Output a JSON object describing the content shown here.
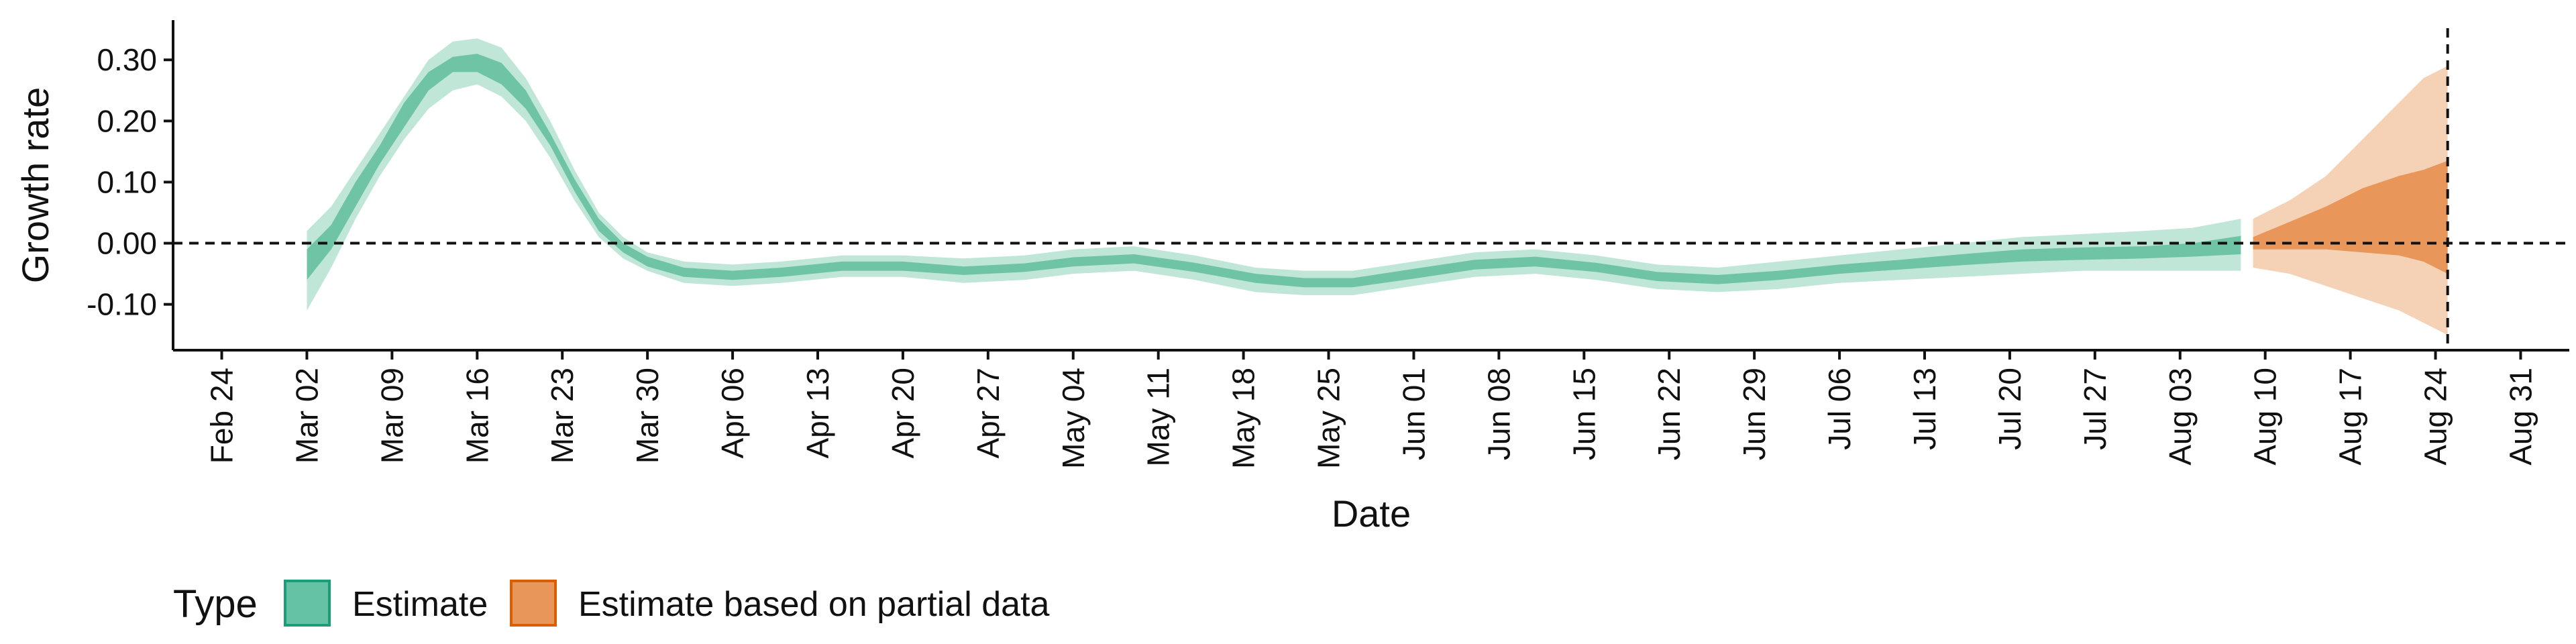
{
  "chart_data": {
    "type": "area",
    "xlabel": "Date",
    "ylabel": "Growth rate",
    "ylim": [
      -0.175,
      0.365
    ],
    "xlim": [
      "2020-02-20",
      "2020-09-04"
    ],
    "grid": false,
    "legend_placement": "bottom-left",
    "zero_line": true,
    "forecast_date": "2020-08-25",
    "y_ticks": [
      {
        "value": 0.3,
        "label": "0.30"
      },
      {
        "value": 0.2,
        "label": "0.20"
      },
      {
        "value": 0.1,
        "label": "0.10"
      },
      {
        "value": 0.0,
        "label": "0.00"
      },
      {
        "value": -0.1,
        "label": "-0.10"
      }
    ],
    "x_ticks": [
      {
        "date": "2020-02-24",
        "label": "Feb 24"
      },
      {
        "date": "2020-03-02",
        "label": "Mar 02"
      },
      {
        "date": "2020-03-09",
        "label": "Mar 09"
      },
      {
        "date": "2020-03-16",
        "label": "Mar 16"
      },
      {
        "date": "2020-03-23",
        "label": "Mar 23"
      },
      {
        "date": "2020-03-30",
        "label": "Mar 30"
      },
      {
        "date": "2020-04-06",
        "label": "Apr 06"
      },
      {
        "date": "2020-04-13",
        "label": "Apr 13"
      },
      {
        "date": "2020-04-20",
        "label": "Apr 20"
      },
      {
        "date": "2020-04-27",
        "label": "Apr 27"
      },
      {
        "date": "2020-05-04",
        "label": "May 04"
      },
      {
        "date": "2020-05-11",
        "label": "May 11"
      },
      {
        "date": "2020-05-18",
        "label": "May 18"
      },
      {
        "date": "2020-05-25",
        "label": "May 25"
      },
      {
        "date": "2020-06-01",
        "label": "Jun 01"
      },
      {
        "date": "2020-06-08",
        "label": "Jun 08"
      },
      {
        "date": "2020-06-15",
        "label": "Jun 15"
      },
      {
        "date": "2020-06-22",
        "label": "Jun 22"
      },
      {
        "date": "2020-06-29",
        "label": "Jun 29"
      },
      {
        "date": "2020-07-06",
        "label": "Jul 06"
      },
      {
        "date": "2020-07-13",
        "label": "Jul 13"
      },
      {
        "date": "2020-07-20",
        "label": "Jul 20"
      },
      {
        "date": "2020-07-27",
        "label": "Jul 27"
      },
      {
        "date": "2020-08-03",
        "label": "Aug 03"
      },
      {
        "date": "2020-08-10",
        "label": "Aug 10"
      },
      {
        "date": "2020-08-17",
        "label": "Aug 17"
      },
      {
        "date": "2020-08-24",
        "label": "Aug 24"
      },
      {
        "date": "2020-08-31",
        "label": "Aug 31"
      }
    ],
    "legend": {
      "title": "Type",
      "items": [
        {
          "label": "Estimate",
          "color": "#66c2a5",
          "border": "#1b9e77"
        },
        {
          "label": "Estimate based on partial data",
          "color": "#e8965a",
          "border": "#d95f02"
        }
      ]
    },
    "series": [
      {
        "name": "Estimate",
        "color": "#66c2a5",
        "fill_outer": "#bfe6d7",
        "fill_inner": "#6fc4a5",
        "points": [
          {
            "date": "2020-03-02",
            "outer": [
              -0.11,
              0.02
            ],
            "inner": [
              -0.06,
              -0.01
            ]
          },
          {
            "date": "2020-03-04",
            "outer": [
              -0.04,
              0.06
            ],
            "inner": [
              -0.01,
              0.03
            ]
          },
          {
            "date": "2020-03-06",
            "outer": [
              0.04,
              0.12
            ],
            "inner": [
              0.06,
              0.1
            ]
          },
          {
            "date": "2020-03-08",
            "outer": [
              0.11,
              0.18
            ],
            "inner": [
              0.13,
              0.16
            ]
          },
          {
            "date": "2020-03-10",
            "outer": [
              0.17,
              0.24
            ],
            "inner": [
              0.19,
              0.23
            ]
          },
          {
            "date": "2020-03-12",
            "outer": [
              0.22,
              0.3
            ],
            "inner": [
              0.25,
              0.28
            ]
          },
          {
            "date": "2020-03-14",
            "outer": [
              0.25,
              0.33
            ],
            "inner": [
              0.28,
              0.305
            ]
          },
          {
            "date": "2020-03-16",
            "outer": [
              0.26,
              0.335
            ],
            "inner": [
              0.28,
              0.31
            ]
          },
          {
            "date": "2020-03-18",
            "outer": [
              0.24,
              0.32
            ],
            "inner": [
              0.26,
              0.295
            ]
          },
          {
            "date": "2020-03-20",
            "outer": [
              0.2,
              0.27
            ],
            "inner": [
              0.22,
              0.25
            ]
          },
          {
            "date": "2020-03-22",
            "outer": [
              0.14,
              0.2
            ],
            "inner": [
              0.16,
              0.18
            ]
          },
          {
            "date": "2020-03-24",
            "outer": [
              0.07,
              0.12
            ],
            "inner": [
              0.085,
              0.105
            ]
          },
          {
            "date": "2020-03-26",
            "outer": [
              0.01,
              0.05
            ],
            "inner": [
              0.02,
              0.04
            ]
          },
          {
            "date": "2020-03-28",
            "outer": [
              -0.025,
              0.01
            ],
            "inner": [
              -0.015,
              0.0
            ]
          },
          {
            "date": "2020-03-30",
            "outer": [
              -0.045,
              -0.015
            ],
            "inner": [
              -0.038,
              -0.022
            ]
          },
          {
            "date": "2020-04-02",
            "outer": [
              -0.065,
              -0.03
            ],
            "inner": [
              -0.055,
              -0.04
            ]
          },
          {
            "date": "2020-04-06",
            "outer": [
              -0.07,
              -0.035
            ],
            "inner": [
              -0.06,
              -0.045
            ]
          },
          {
            "date": "2020-04-10",
            "outer": [
              -0.065,
              -0.03
            ],
            "inner": [
              -0.055,
              -0.04
            ]
          },
          {
            "date": "2020-04-15",
            "outer": [
              -0.055,
              -0.02
            ],
            "inner": [
              -0.045,
              -0.03
            ]
          },
          {
            "date": "2020-04-20",
            "outer": [
              -0.055,
              -0.02
            ],
            "inner": [
              -0.045,
              -0.03
            ]
          },
          {
            "date": "2020-04-25",
            "outer": [
              -0.065,
              -0.025
            ],
            "inner": [
              -0.052,
              -0.038
            ]
          },
          {
            "date": "2020-04-30",
            "outer": [
              -0.06,
              -0.02
            ],
            "inner": [
              -0.047,
              -0.033
            ]
          },
          {
            "date": "2020-05-04",
            "outer": [
              -0.05,
              -0.01
            ],
            "inner": [
              -0.038,
              -0.023
            ]
          },
          {
            "date": "2020-05-09",
            "outer": [
              -0.045,
              -0.005
            ],
            "inner": [
              -0.033,
              -0.018
            ]
          },
          {
            "date": "2020-05-14",
            "outer": [
              -0.06,
              -0.02
            ],
            "inner": [
              -0.047,
              -0.032
            ]
          },
          {
            "date": "2020-05-19",
            "outer": [
              -0.08,
              -0.04
            ],
            "inner": [
              -0.065,
              -0.05
            ]
          },
          {
            "date": "2020-05-23",
            "outer": [
              -0.085,
              -0.045
            ],
            "inner": [
              -0.072,
              -0.057
            ]
          },
          {
            "date": "2020-05-27",
            "outer": [
              -0.085,
              -0.045
            ],
            "inner": [
              -0.072,
              -0.057
            ]
          },
          {
            "date": "2020-06-01",
            "outer": [
              -0.07,
              -0.03
            ],
            "inner": [
              -0.058,
              -0.042
            ]
          },
          {
            "date": "2020-06-06",
            "outer": [
              -0.055,
              -0.015
            ],
            "inner": [
              -0.043,
              -0.027
            ]
          },
          {
            "date": "2020-06-11",
            "outer": [
              -0.05,
              -0.01
            ],
            "inner": [
              -0.038,
              -0.022
            ]
          },
          {
            "date": "2020-06-16",
            "outer": [
              -0.06,
              -0.02
            ],
            "inner": [
              -0.047,
              -0.032
            ]
          },
          {
            "date": "2020-06-21",
            "outer": [
              -0.075,
              -0.035
            ],
            "inner": [
              -0.062,
              -0.047
            ]
          },
          {
            "date": "2020-06-26",
            "outer": [
              -0.08,
              -0.04
            ],
            "inner": [
              -0.067,
              -0.052
            ]
          },
          {
            "date": "2020-07-01",
            "outer": [
              -0.075,
              -0.03
            ],
            "inner": [
              -0.06,
              -0.045
            ]
          },
          {
            "date": "2020-07-06",
            "outer": [
              -0.065,
              -0.02
            ],
            "inner": [
              -0.05,
              -0.035
            ]
          },
          {
            "date": "2020-07-11",
            "outer": [
              -0.06,
              -0.01
            ],
            "inner": [
              -0.043,
              -0.027
            ]
          },
          {
            "date": "2020-07-16",
            "outer": [
              -0.055,
              0.0
            ],
            "inner": [
              -0.036,
              -0.018
            ]
          },
          {
            "date": "2020-07-21",
            "outer": [
              -0.05,
              0.01
            ],
            "inner": [
              -0.03,
              -0.01
            ]
          },
          {
            "date": "2020-07-26",
            "outer": [
              -0.045,
              0.015
            ],
            "inner": [
              -0.027,
              -0.007
            ]
          },
          {
            "date": "2020-07-31",
            "outer": [
              -0.045,
              0.02
            ],
            "inner": [
              -0.025,
              -0.005
            ]
          },
          {
            "date": "2020-08-04",
            "outer": [
              -0.045,
              0.025
            ],
            "inner": [
              -0.022,
              0.0
            ]
          },
          {
            "date": "2020-08-08",
            "outer": [
              -0.045,
              0.04
            ],
            "inner": [
              -0.018,
              0.012
            ]
          }
        ]
      },
      {
        "name": "Estimate based on partial data",
        "color": "#e8965a",
        "fill_outer": "#f5d2b6",
        "fill_inner": "#e8965a",
        "points": [
          {
            "date": "2020-08-09",
            "outer": [
              -0.04,
              0.04
            ],
            "inner": [
              -0.01,
              0.01
            ]
          },
          {
            "date": "2020-08-12",
            "outer": [
              -0.05,
              0.07
            ],
            "inner": [
              -0.01,
              0.035
            ]
          },
          {
            "date": "2020-08-15",
            "outer": [
              -0.07,
              0.11
            ],
            "inner": [
              -0.01,
              0.06
            ]
          },
          {
            "date": "2020-08-18",
            "outer": [
              -0.09,
              0.17
            ],
            "inner": [
              -0.015,
              0.09
            ]
          },
          {
            "date": "2020-08-21",
            "outer": [
              -0.11,
              0.23
            ],
            "inner": [
              -0.02,
              0.11
            ]
          },
          {
            "date": "2020-08-23",
            "outer": [
              -0.13,
              0.27
            ],
            "inner": [
              -0.03,
              0.12
            ]
          },
          {
            "date": "2020-08-25",
            "outer": [
              -0.15,
              0.29
            ],
            "inner": [
              -0.05,
              0.135
            ]
          }
        ]
      }
    ]
  }
}
